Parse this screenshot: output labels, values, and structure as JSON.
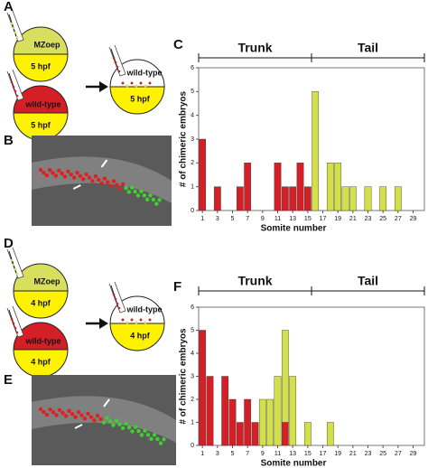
{
  "diagrams": [
    {
      "letter": "A",
      "donor_top": {
        "name": "MZoep",
        "stage": "5 hpf"
      },
      "donor_bottom": {
        "name": "wild-type",
        "stage": "5 hpf"
      },
      "host": {
        "name": "wild-type",
        "stage": "5 hpf"
      }
    },
    {
      "letter": "D",
      "donor_top": {
        "name": "MZoep",
        "stage": "4 hpf"
      },
      "donor_bottom": {
        "name": "wild-type",
        "stage": "4 hpf"
      },
      "host": {
        "name": "wild-type",
        "stage": "4 hpf"
      }
    }
  ],
  "images": [
    {
      "letter": "B"
    },
    {
      "letter": "E"
    }
  ],
  "chart_data": [
    {
      "type": "bar",
      "panel_label": "C",
      "annotations": [
        "Trunk",
        "Tail"
      ],
      "x_label": "Somite number",
      "y_label": "# of chimeric embryos",
      "x": [
        1,
        2,
        3,
        4,
        5,
        6,
        7,
        8,
        9,
        10,
        11,
        12,
        13,
        14,
        15,
        16,
        17,
        18,
        19,
        20,
        21,
        22,
        23,
        24,
        25,
        26,
        27,
        28,
        29,
        30
      ],
      "series": [
        {
          "color": "#d51f26",
          "values": [
            3,
            0,
            1,
            0,
            0,
            1,
            2,
            0,
            0,
            0,
            2,
            1,
            1,
            2,
            1,
            0,
            0,
            0,
            0,
            0,
            0,
            0,
            0,
            0,
            0,
            0,
            0,
            0,
            0,
            0
          ]
        },
        {
          "color": "#d4e04a",
          "values": [
            0,
            0,
            0,
            0,
            0,
            0,
            0,
            0,
            0,
            0,
            0,
            0,
            0,
            0,
            0,
            5,
            0,
            2,
            2,
            1,
            1,
            0,
            1,
            0,
            1,
            0,
            1,
            0,
            0,
            0
          ]
        }
      ],
      "xlim": [
        0.5,
        30.5
      ],
      "xticks": [
        1,
        3,
        5,
        7,
        9,
        11,
        13,
        15,
        17,
        19,
        21,
        23,
        25,
        27,
        29
      ],
      "ylim": [
        0,
        6
      ],
      "yticks": [
        0,
        1,
        2,
        3,
        4,
        5,
        6
      ],
      "stacked": true
    },
    {
      "type": "bar",
      "panel_label": "F",
      "annotations": [
        "Trunk",
        "Tail"
      ],
      "x_label": "Somite number",
      "y_label": "# of chimeric embryos",
      "x": [
        1,
        2,
        3,
        4,
        5,
        6,
        7,
        8,
        9,
        10,
        11,
        12,
        13,
        14,
        15,
        16,
        17,
        18,
        19,
        20,
        21,
        22,
        23,
        24,
        25,
        26,
        27,
        28,
        29,
        30
      ],
      "series": [
        {
          "color": "#d51f26",
          "values": [
            5,
            3,
            0,
            3,
            2,
            1,
            2,
            1,
            0,
            0,
            0,
            1,
            0,
            0,
            0,
            0,
            0,
            0,
            0,
            0,
            0,
            0,
            0,
            0,
            0,
            0,
            0,
            0,
            0,
            0
          ]
        },
        {
          "color": "#d4e04a",
          "values": [
            0,
            0,
            0,
            0,
            0,
            0,
            0,
            0,
            2,
            2,
            3,
            4,
            3,
            0,
            1,
            0,
            0,
            1,
            0,
            0,
            0,
            0,
            0,
            0,
            0,
            0,
            0,
            0,
            0,
            0
          ]
        }
      ],
      "xlim": [
        0.5,
        30.5
      ],
      "xticks": [
        1,
        3,
        5,
        7,
        9,
        11,
        13,
        15,
        17,
        19,
        21,
        23,
        25,
        27,
        29
      ],
      "ylim": [
        0,
        6
      ],
      "yticks": [
        0,
        1,
        2,
        3,
        4,
        5,
        6
      ],
      "stacked": true
    }
  ]
}
